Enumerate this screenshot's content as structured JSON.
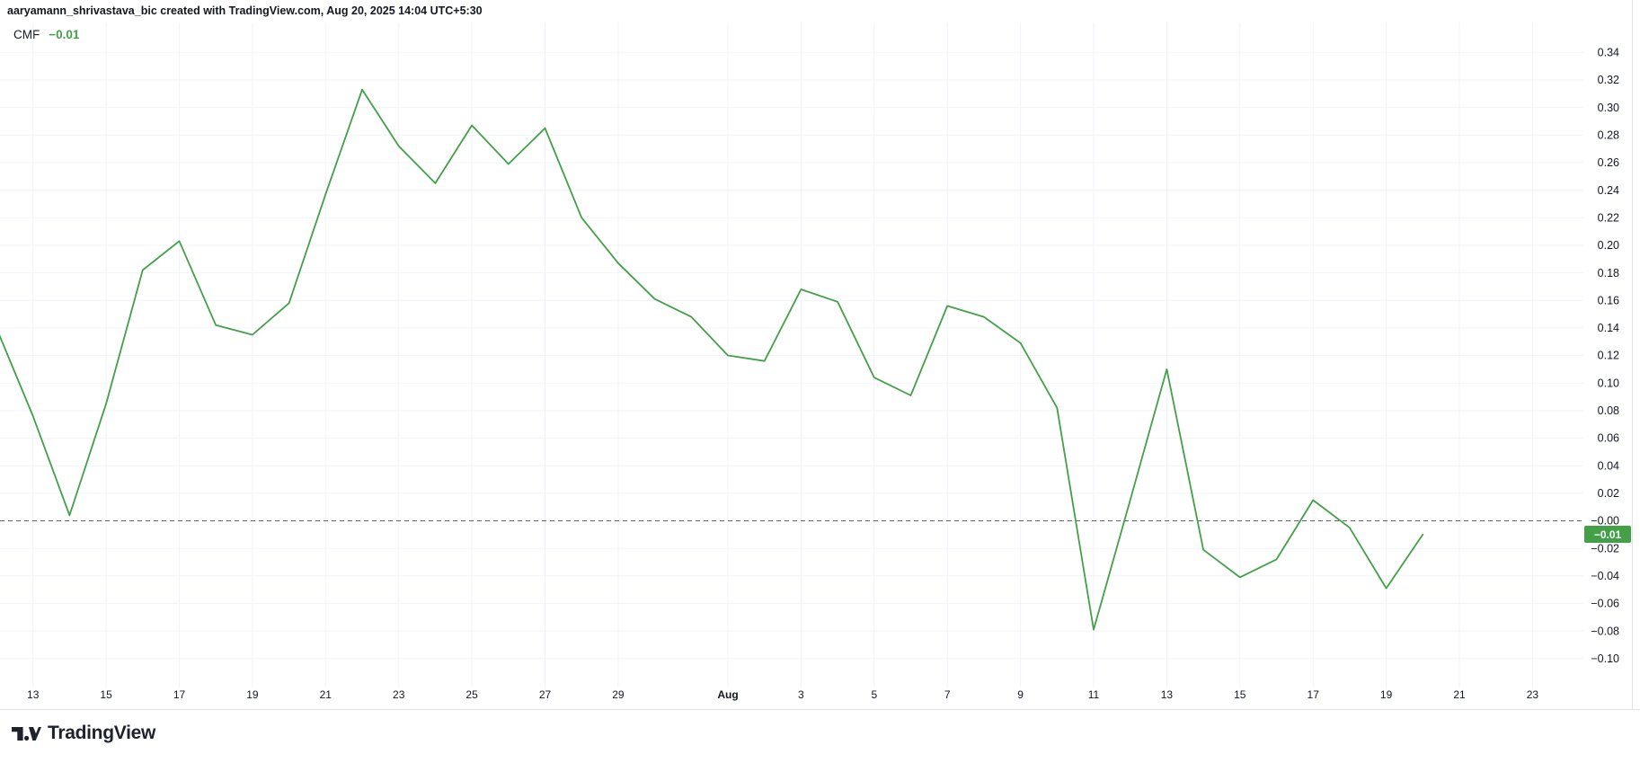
{
  "header": {
    "attribution": "aaryamann_shrivastava_bic created with TradingView.com, Aug 20, 2025 14:04 UTC+5:30"
  },
  "indicator": {
    "name": "CMF",
    "value_label": "−0.01",
    "last_value": -0.01
  },
  "footer": {
    "logo_text": "TradingView"
  },
  "colors": {
    "line": "#43a047",
    "badge_bg": "#43a047",
    "badge_text": "#ffffff",
    "grid": "#f0f3fa",
    "axis_text": "#131722",
    "zero_line": "#60636e",
    "separator": "#e0e3eb"
  },
  "chart_data": {
    "type": "line",
    "title": "CMF (Chaikin Money Flow)",
    "legend_position": "top-left",
    "grid": true,
    "ylim": [
      -0.1,
      0.34
    ],
    "y_step": 0.02,
    "x": [
      "Jul 12",
      "Jul 13",
      "Jul 14",
      "Jul 15",
      "Jul 16",
      "Jul 17",
      "Jul 18",
      "Jul 19",
      "Jul 20",
      "Jul 21",
      "Jul 22",
      "Jul 23",
      "Jul 24",
      "Jul 25",
      "Jul 26",
      "Jul 27",
      "Jul 28",
      "Jul 29",
      "Jul 30",
      "Jul 31",
      "Aug 1",
      "Aug 2",
      "Aug 3",
      "Aug 4",
      "Aug 5",
      "Aug 6",
      "Aug 7",
      "Aug 8",
      "Aug 9",
      "Aug 10",
      "Aug 11",
      "Aug 12",
      "Aug 13",
      "Aug 14",
      "Aug 15",
      "Aug 16",
      "Aug 17",
      "Aug 18",
      "Aug 19",
      "Aug 20"
    ],
    "series": [
      {
        "name": "CMF",
        "color": "#43a047",
        "values": [
          0.14,
          0.076,
          0.004,
          0.085,
          0.182,
          0.203,
          0.142,
          0.135,
          0.158,
          0.237,
          0.313,
          0.272,
          0.245,
          0.287,
          0.259,
          0.285,
          0.22,
          0.187,
          0.161,
          0.148,
          0.12,
          0.116,
          0.168,
          0.159,
          0.104,
          0.091,
          0.156,
          0.148,
          0.129,
          0.082,
          -0.079,
          0.015,
          0.11,
          -0.021,
          -0.041,
          -0.028,
          0.015,
          -0.005,
          -0.049,
          -0.01
        ]
      }
    ],
    "zero_line": {
      "value": 0,
      "style": "dashed",
      "label": "−0.00"
    },
    "y_axis": {
      "ticks": [
        {
          "value": 0.34,
          "label": "0.34"
        },
        {
          "value": 0.32,
          "label": "0.32"
        },
        {
          "value": 0.3,
          "label": "0.30"
        },
        {
          "value": 0.28,
          "label": "0.28"
        },
        {
          "value": 0.26,
          "label": "0.26"
        },
        {
          "value": 0.24,
          "label": "0.24"
        },
        {
          "value": 0.22,
          "label": "0.22"
        },
        {
          "value": 0.2,
          "label": "0.20"
        },
        {
          "value": 0.18,
          "label": "0.18"
        },
        {
          "value": 0.16,
          "label": "0.16"
        },
        {
          "value": 0.14,
          "label": "0.14"
        },
        {
          "value": 0.12,
          "label": "0.12"
        },
        {
          "value": 0.1,
          "label": "0.10"
        },
        {
          "value": 0.08,
          "label": "0.08"
        },
        {
          "value": 0.06,
          "label": "0.06"
        },
        {
          "value": 0.04,
          "label": "0.04"
        },
        {
          "value": 0.02,
          "label": "0.02"
        },
        {
          "value": 0.0,
          "label": "−0.00"
        },
        {
          "value": -0.02,
          "label": "−0.02"
        },
        {
          "value": -0.04,
          "label": "−0.04"
        },
        {
          "value": -0.06,
          "label": "−0.06"
        },
        {
          "value": -0.08,
          "label": "−0.08"
        },
        {
          "value": -0.1,
          "label": "−0.10"
        }
      ]
    },
    "x_ticks": [
      {
        "label": "13",
        "index": 1
      },
      {
        "label": "15",
        "index": 3
      },
      {
        "label": "17",
        "index": 5
      },
      {
        "label": "19",
        "index": 7
      },
      {
        "label": "21",
        "index": 9
      },
      {
        "label": "23",
        "index": 11
      },
      {
        "label": "25",
        "index": 13
      },
      {
        "label": "27",
        "index": 15
      },
      {
        "label": "29",
        "index": 17
      },
      {
        "label": "Aug",
        "index": 20,
        "emphasis": true
      },
      {
        "label": "3",
        "index": 22
      },
      {
        "label": "5",
        "index": 24
      },
      {
        "label": "7",
        "index": 26
      },
      {
        "label": "9",
        "index": 28
      },
      {
        "label": "11",
        "index": 30
      },
      {
        "label": "13",
        "index": 32
      },
      {
        "label": "15",
        "index": 34
      },
      {
        "label": "17",
        "index": 36
      },
      {
        "label": "19",
        "index": 38
      },
      {
        "label": "21",
        "index": 40
      },
      {
        "label": "23",
        "index": 42
      }
    ]
  }
}
